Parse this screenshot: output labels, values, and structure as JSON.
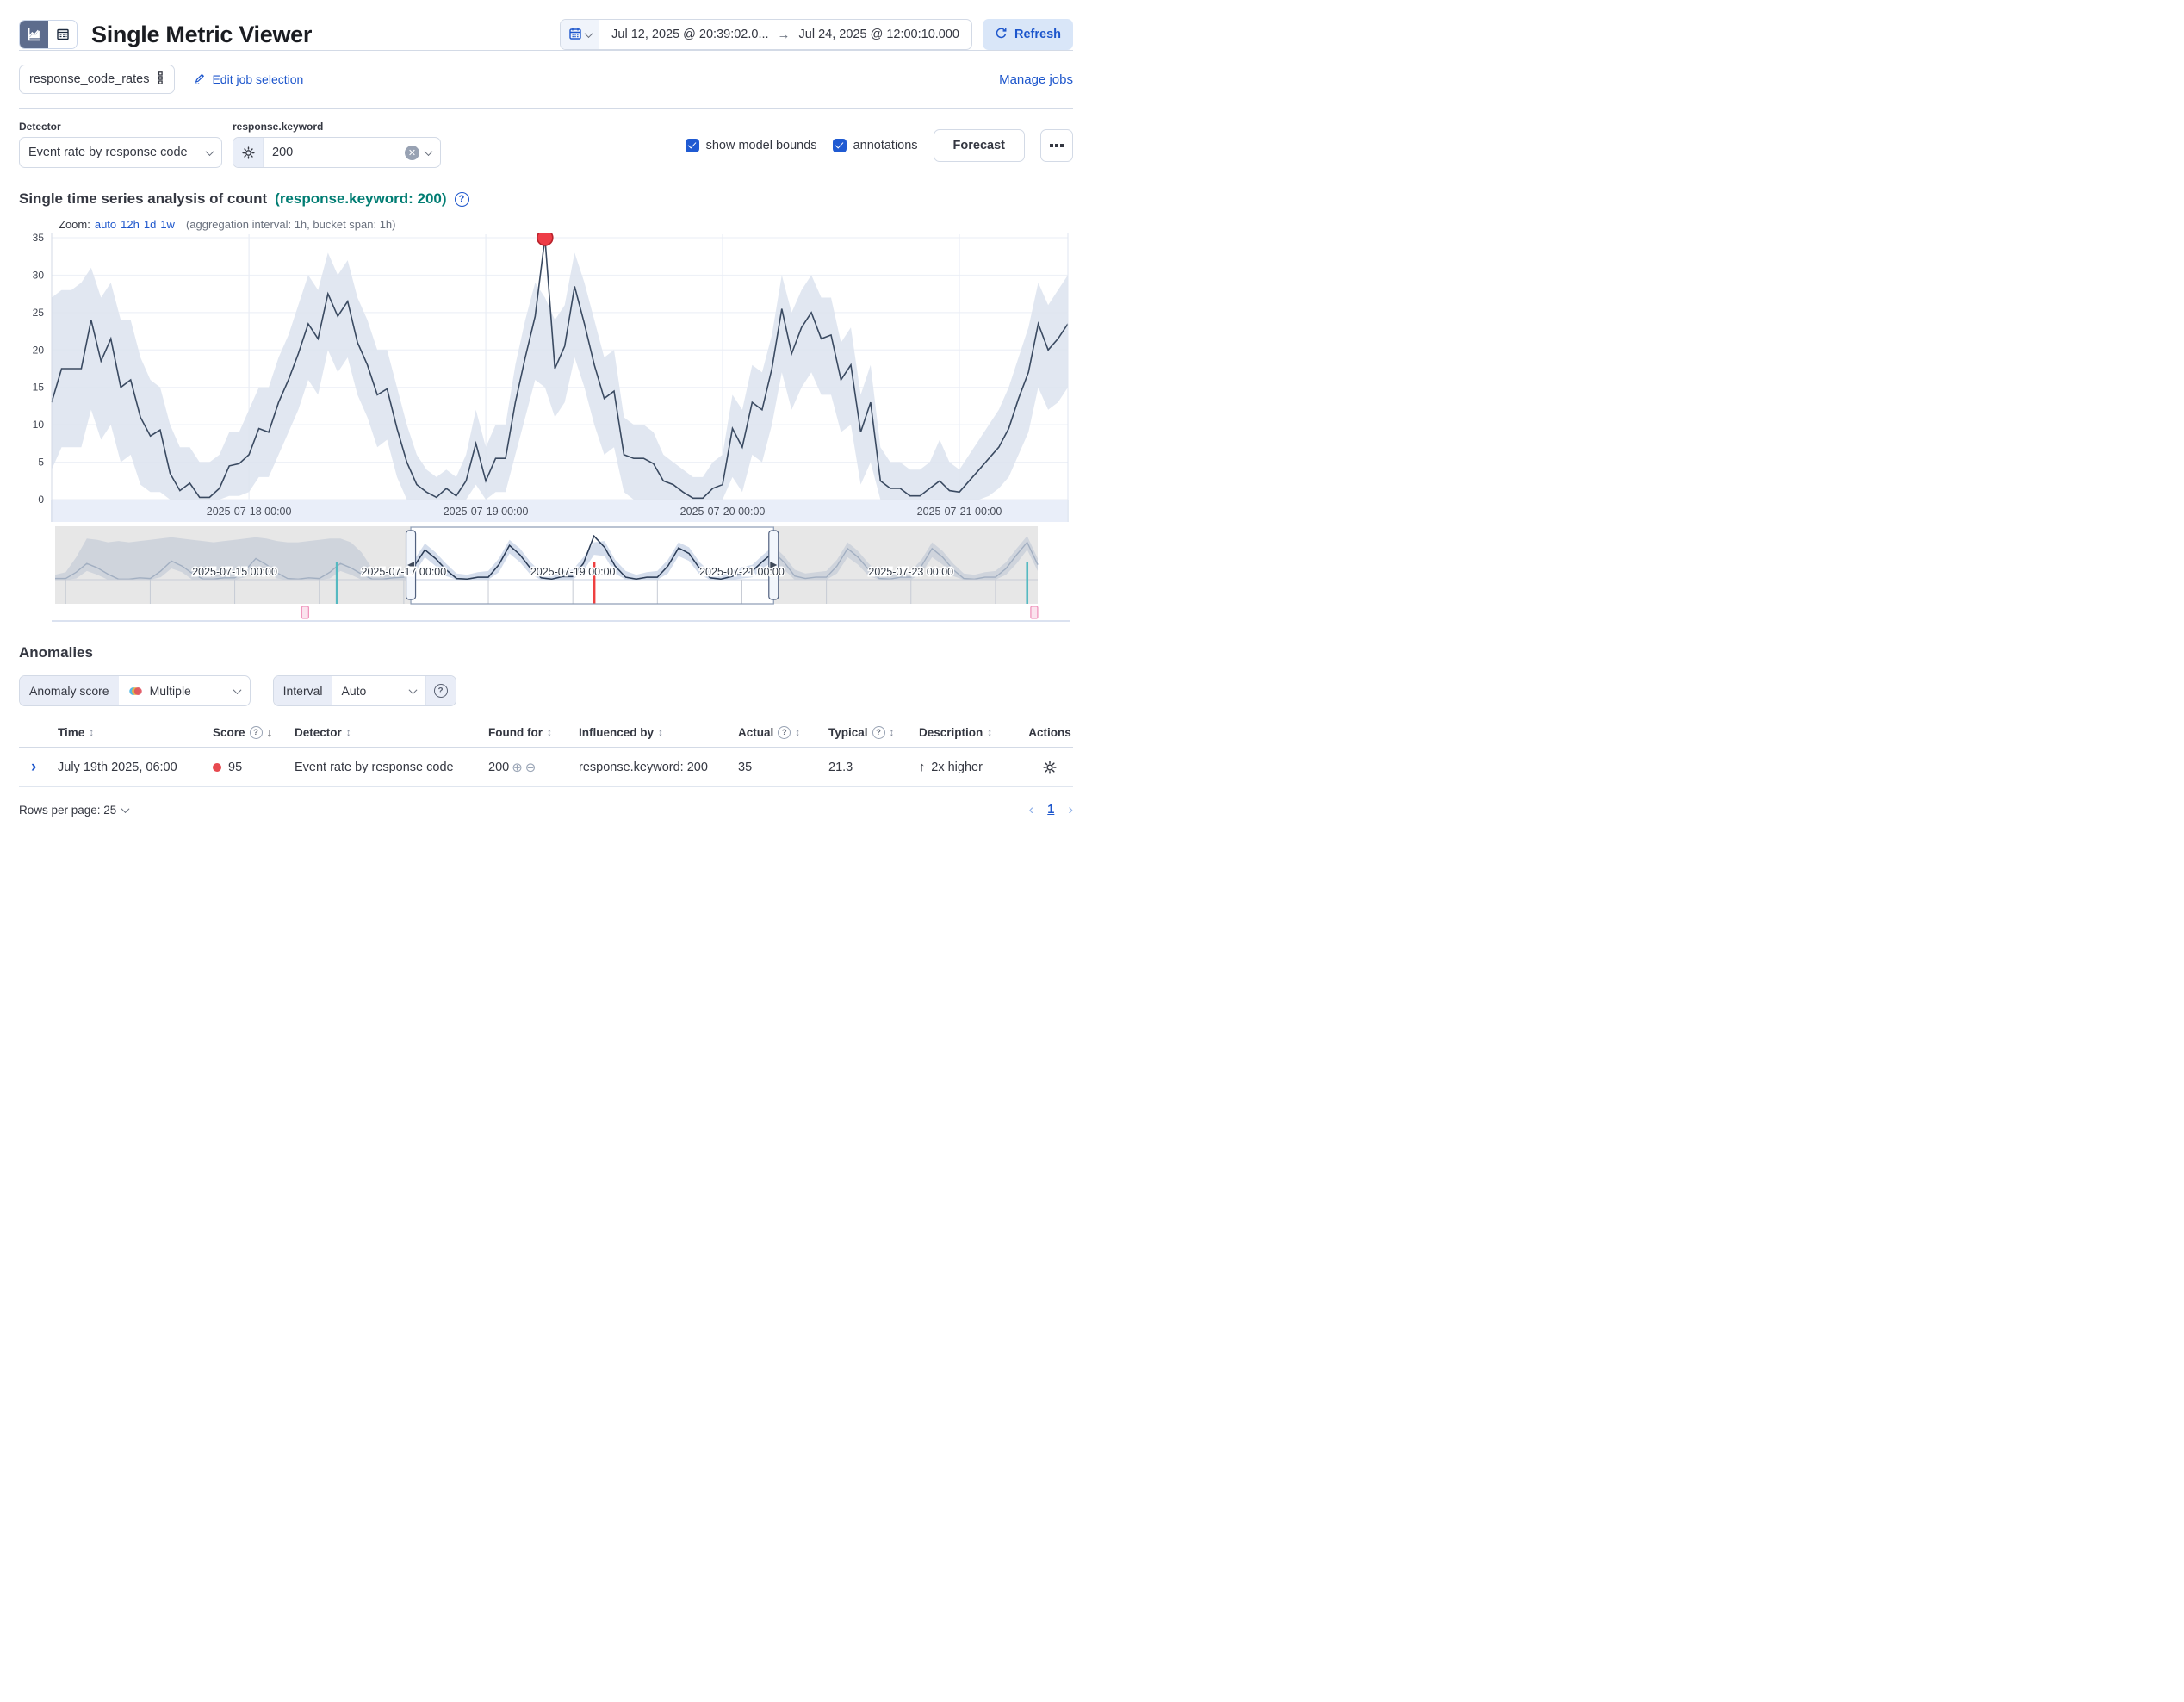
{
  "header": {
    "title": "Single Metric Viewer",
    "time_start": "Jul 12, 2025 @ 20:39:02.0...",
    "time_end": "Jul 24, 2025 @ 12:00:10.000",
    "refresh_label": "Refresh"
  },
  "jobs": {
    "selected_job": "response_code_rates",
    "edit_label": "Edit job selection",
    "manage_label": "Manage jobs"
  },
  "controls": {
    "detector_label": "Detector",
    "detector_value": "Event rate by response code",
    "entity_label": "response.keyword",
    "entity_value": "200",
    "show_model_bounds_label": "show model bounds",
    "annotations_label": "annotations",
    "forecast_label": "Forecast"
  },
  "chart_section": {
    "title": "Single time series analysis of count",
    "subtitle": "(response.keyword: 200)",
    "zoom_label": "Zoom:",
    "zoom_options": {
      "0": "auto",
      "1": "12h",
      "2": "1d",
      "3": "1w"
    },
    "aggregation_note": "(aggregation interval: 1h, bucket span: 1h)"
  },
  "chart_data": [
    {
      "id": "focus",
      "type": "line",
      "title": "Single time series analysis of count (response.keyword: 200)",
      "x_start": "2025-07-17 04:00",
      "interval_hours": 1,
      "x_tick_labels": [
        "2025-07-18 00:00",
        "2025-07-19 00:00",
        "2025-07-20 00:00",
        "2025-07-21 00:00"
      ],
      "ylim": [
        0,
        35
      ],
      "y_ticks": [
        0,
        5,
        10,
        15,
        20,
        25,
        30,
        35
      ],
      "grid": true,
      "values": [
        13,
        17.5,
        17.5,
        17.5,
        24,
        18.5,
        21.5,
        15,
        16,
        11,
        8.5,
        9.3,
        3.5,
        1.2,
        2.2,
        0.3,
        0.3,
        1.5,
        4.5,
        4.8,
        6,
        9.5,
        9,
        13,
        16,
        19.5,
        23.5,
        21.5,
        27.5,
        24.5,
        26.5,
        21,
        18,
        14,
        14.8,
        9.5,
        5,
        2,
        1,
        0.3,
        1.5,
        0.5,
        2.5,
        7.5,
        2.5,
        5.5,
        5.5,
        13,
        19,
        24.5,
        35,
        17.5,
        20.5,
        28.5,
        23.5,
        18,
        13.5,
        14.5,
        6,
        5.5,
        5.5,
        4.8,
        2.5,
        2,
        1,
        0.2,
        0.2,
        1.5,
        2,
        9.5,
        7,
        13,
        12,
        17.5,
        25.5,
        19.5,
        23,
        25,
        21.5,
        22,
        16,
        18,
        9,
        13,
        2.5,
        1.5,
        1.5,
        0.5,
        0.5,
        1.5,
        2.5,
        1.2,
        1,
        2.5,
        4,
        5.5,
        7,
        9.5,
        13.5,
        17,
        23.5,
        20,
        21.5,
        23.5
      ],
      "model_upper": [
        27,
        28,
        28,
        29,
        31,
        27,
        29,
        24,
        24,
        19,
        16,
        15,
        10,
        7,
        7,
        5,
        5,
        6,
        9,
        9,
        12,
        15,
        15,
        19,
        22,
        26,
        30,
        28,
        33,
        30,
        32,
        27,
        24,
        20,
        20,
        15,
        10,
        6,
        4,
        3,
        4,
        3,
        6,
        12,
        7,
        10,
        10,
        18,
        24,
        29,
        27,
        24,
        26,
        33,
        29,
        24,
        19,
        20,
        11,
        10,
        10,
        9,
        6,
        5,
        4,
        3,
        3,
        5,
        6,
        14,
        12,
        18,
        17,
        22,
        30,
        25,
        28,
        30,
        27,
        27,
        21,
        23,
        14,
        18,
        7,
        5,
        5,
        4,
        4,
        5,
        8,
        5,
        4,
        6,
        8,
        10,
        12,
        15,
        19,
        23,
        29,
        26,
        28,
        30
      ],
      "model_lower": [
        4,
        7,
        7,
        7,
        12,
        8,
        10,
        5,
        6,
        2,
        1,
        1,
        0,
        0,
        0,
        0,
        0,
        0,
        0.5,
        0.5,
        1,
        3,
        3,
        6,
        9,
        12,
        16,
        14,
        20,
        17,
        19,
        14,
        11,
        7,
        8,
        3,
        0,
        0,
        0,
        0,
        0,
        0,
        0,
        2,
        0,
        1,
        1,
        6,
        11,
        16,
        15,
        11,
        13,
        19,
        15,
        10,
        6,
        7,
        1,
        0,
        0,
        0,
        0,
        0,
        0,
        0,
        0,
        0,
        0,
        3,
        1,
        6,
        5,
        10,
        17,
        12,
        15,
        17,
        14,
        14,
        9,
        10,
        2,
        5,
        0,
        0,
        0,
        0,
        0,
        0,
        0,
        0,
        0,
        0,
        0,
        0.5,
        1.5,
        3,
        6,
        9,
        15,
        12,
        13,
        15
      ],
      "anomaly": {
        "time": "2025-07-19 06:00",
        "value": 35,
        "score": 95,
        "color": "#ee3d47"
      },
      "line_color": "#3a4a61",
      "bound_fill": "#dce3ee",
      "axis_strip_color": "#e9eef9"
    },
    {
      "id": "context",
      "type": "area",
      "x_start": "2025-07-12 21:00",
      "interval_hours": 3,
      "x_tick_labels": [
        "2025-07-15 00:00",
        "2025-07-17 00:00",
        "2025-07-19 00:00",
        "2025-07-21 00:00",
        "2025-07-23 00:00"
      ],
      "ylim": [
        0,
        38
      ],
      "values": [
        1,
        1,
        6,
        13,
        9.5,
        4.5,
        0.5,
        0.5,
        1.5,
        1,
        7,
        15,
        11,
        5,
        0.5,
        0.5,
        1.5,
        1.5,
        7.5,
        17,
        12,
        5.5,
        1,
        0.5,
        1.5,
        1,
        6,
        13,
        9.5,
        4.5,
        0.5,
        0.5,
        1.5,
        2,
        11,
        24,
        17,
        8,
        1,
        0.5,
        2,
        2,
        12,
        27.5,
        20,
        9,
        1.5,
        0.5,
        2.5,
        2.5,
        13,
        35,
        26,
        11,
        2,
        0.5,
        2,
        2,
        11,
        25.5,
        21,
        9,
        1.5,
        0.5,
        2.5,
        5,
        7,
        15,
        22,
        14,
        3,
        1,
        2,
        2,
        11,
        25,
        18,
        8,
        1,
        0.5,
        2,
        2,
        11,
        25,
        18,
        8,
        1,
        0.5,
        2,
        2,
        9,
        20,
        30,
        12
      ],
      "upper": [
        4,
        6,
        18,
        33,
        32,
        30,
        31,
        30,
        31,
        32,
        33,
        34,
        33,
        32,
        31,
        30,
        31,
        32,
        33,
        34,
        33,
        31,
        30,
        30,
        31,
        32,
        33,
        33,
        30,
        22,
        9,
        5,
        6,
        7,
        16,
        29,
        22,
        13,
        5,
        4,
        6,
        7,
        17,
        32,
        25,
        14,
        6,
        4,
        7,
        8,
        18,
        30,
        31,
        16,
        7,
        4,
        6,
        7,
        16,
        30,
        26,
        14,
        6,
        4,
        7,
        10,
        12,
        20,
        27,
        19,
        8,
        5,
        6,
        7,
        16,
        30,
        23,
        13,
        5,
        4,
        6,
        7,
        16,
        30,
        23,
        13,
        5,
        4,
        6,
        7,
        14,
        25,
        35,
        17
      ],
      "lower": [
        0,
        0,
        1,
        7,
        4,
        0,
        0,
        0,
        0,
        0,
        2,
        9,
        6,
        0,
        0,
        0,
        0,
        0,
        2,
        11,
        7,
        1,
        0,
        0,
        0,
        0,
        1,
        7,
        4,
        0,
        0,
        0,
        0,
        0,
        5,
        18,
        11,
        3,
        0,
        0,
        0,
        0,
        6,
        21,
        14,
        4,
        0,
        0,
        0,
        0,
        7,
        20,
        19,
        5,
        0,
        0,
        0,
        0,
        5,
        19,
        15,
        4,
        0,
        0,
        0,
        1,
        2,
        9,
        15,
        8,
        0,
        0,
        0,
        0,
        5,
        18,
        12,
        3,
        0,
        0,
        0,
        0,
        5,
        18,
        12,
        3,
        0,
        0,
        0,
        0,
        4,
        13,
        24,
        7
      ],
      "selection": {
        "start": "2025-07-17 02:00",
        "end": "2025-07-21 09:00"
      },
      "anomaly_line": {
        "time": "2025-07-19 06:00",
        "color": "#ef4040"
      },
      "annotation_lines": [
        {
          "time": "2025-07-16 05:00",
          "color": "#55b9c1"
        },
        {
          "time": "2025-07-24 09:00",
          "color": "#55b9c1"
        }
      ],
      "annotation_badges": [
        {
          "time": "2025-07-15 20:00"
        },
        {
          "time": "2025-07-24 11:00"
        }
      ],
      "band_fill": "#c5d1e5",
      "line_color": "#8299bb",
      "selected_line_color": "#2c3c55"
    }
  ],
  "anomalies": {
    "heading": "Anomalies",
    "severity_filter": {
      "label": "Anomaly score",
      "value": "Multiple"
    },
    "interval_filter": {
      "label": "Interval",
      "value": "Auto"
    },
    "table": {
      "columns": {
        "time": "Time",
        "score": "Score",
        "detector": "Detector",
        "found_for": "Found for",
        "influenced_by": "Influenced by",
        "actual": "Actual",
        "typical": "Typical",
        "description": "Description",
        "actions": "Actions"
      },
      "rows": {
        "0": {
          "time": "July 19th 2025, 06:00",
          "score": "95",
          "detector": "Event rate by response code",
          "found_for": "200",
          "influenced_by": "response.keyword: 200",
          "actual": "35",
          "typical": "21.3",
          "description": "2x higher",
          "description_arrow": "↑"
        }
      }
    },
    "pagination": {
      "rows_per_page_label": "Rows per page: 25",
      "page": "1"
    }
  },
  "colors": {
    "primary_blue": "#1d56cc",
    "checkbox_blue": "#1f5ad2",
    "teal_heading": "#017d73",
    "severity_critical": "#e7494f",
    "selected_toggle": "#5d6c8d"
  }
}
